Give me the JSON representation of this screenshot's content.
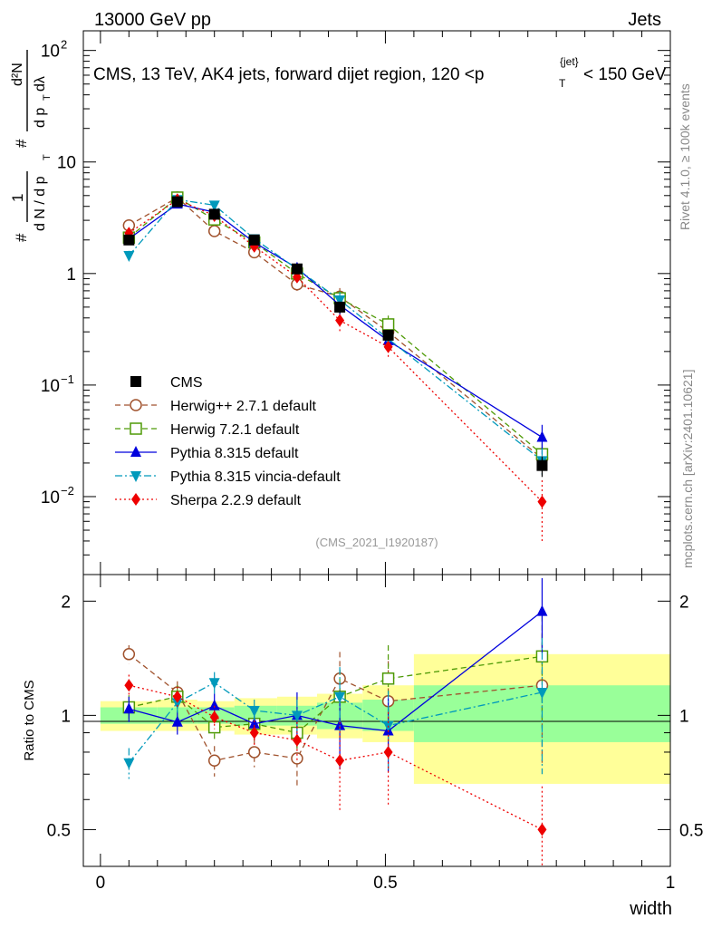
{
  "header": {
    "left": "13000 GeV pp",
    "right": "Jets"
  },
  "side_labels": {
    "rivet": "Rivet 4.1.0, ≥ 100k events",
    "mcplots": "mcplots.cern.ch [arXiv:2401.10621]"
  },
  "watermark": "(CMS_2021_I1920187)",
  "chart_data": [
    {
      "type": "line",
      "panel": "main",
      "title": "CMS, 13 TeV, AK4 jets, forward dijet region, 120 <p_T^{jet}< 150 GeV",
      "title_parts": {
        "pre": "CMS, 13 TeV, AK4 jets, forward dijet region, 120 <p",
        "sup": "{jet}",
        "sub": "T",
        "post": "< 150 GeV"
      },
      "ylabel": "1/N dN/dp_T dλ",
      "ylabel_parts": {
        "hash": "#",
        "one": "1",
        "dN": "d N / d p",
        "T": "T",
        "d2N": "d²N",
        "dpdl": "d p",
        "dl": " dλ"
      },
      "yscale": "log",
      "ylim": [
        0.002,
        150
      ],
      "xlim": [
        -0.03,
        1.0
      ],
      "yticks": [
        {
          "value": 100,
          "base": "10",
          "exp": "2"
        },
        {
          "value": 10,
          "base": "10",
          "exp": ""
        },
        {
          "value": 1,
          "base": "1",
          "exp": ""
        },
        {
          "value": 0.1,
          "base": "10",
          "exp": "−1"
        },
        {
          "value": 0.01,
          "base": "10",
          "exp": "−2"
        }
      ],
      "legend_position": "bottom-left",
      "x": [
        0.05,
        0.135,
        0.2,
        0.27,
        0.345,
        0.42,
        0.505,
        0.775
      ],
      "series": [
        {
          "name": "CMS",
          "color": "#000000",
          "style": "data",
          "marker": "square-filled",
          "values": [
            2.0,
            4.4,
            3.4,
            2.0,
            1.1,
            0.5,
            0.28,
            0.019
          ],
          "errors": [
            0.2,
            0.3,
            0.25,
            0.15,
            0.1,
            0.06,
            0.03,
            0.004
          ]
        },
        {
          "name": "Herwig++ 2.7.1 default",
          "color": "#a0522d",
          "style": "dashed",
          "marker": "circle-open",
          "values": [
            2.7,
            4.8,
            2.4,
            1.55,
            0.8,
            0.62,
            0.3,
            0.022
          ],
          "errors": [
            0.2,
            0.35,
            0.2,
            0.15,
            0.1,
            0.12,
            0.06,
            0.006
          ]
        },
        {
          "name": "Herwig 7.2.1 default",
          "color": "#4e9a06",
          "style": "dashed",
          "marker": "square-open",
          "values": [
            2.1,
            4.8,
            3.05,
            1.9,
            1.0,
            0.6,
            0.35,
            0.024
          ],
          "errors": [
            0.2,
            0.35,
            0.25,
            0.15,
            0.1,
            0.1,
            0.07,
            0.006
          ]
        },
        {
          "name": "Pythia 8.315 default",
          "color": "#0000dd",
          "style": "solid",
          "marker": "triangle-up",
          "values": [
            2.05,
            4.2,
            3.55,
            1.9,
            1.12,
            0.52,
            0.25,
            0.034
          ],
          "errors": [
            0.2,
            0.3,
            0.3,
            0.18,
            0.12,
            0.1,
            0.05,
            0.01
          ]
        },
        {
          "name": "Pythia 8.315 vincia-default",
          "color": "#0099bb",
          "style": "dashdot",
          "marker": "triangle-down",
          "values": [
            1.45,
            4.6,
            4.1,
            2.05,
            1.1,
            0.58,
            0.26,
            0.021
          ],
          "errors": [
            0.15,
            0.35,
            0.3,
            0.18,
            0.12,
            0.1,
            0.05,
            0.006
          ]
        },
        {
          "name": "Sherpa 2.2.9 default",
          "color": "#ee0000",
          "style": "dotted",
          "marker": "diamond",
          "values": [
            2.3,
            4.6,
            3.3,
            1.75,
            0.93,
            0.38,
            0.22,
            0.009
          ],
          "errors": [
            0.2,
            0.35,
            0.25,
            0.15,
            0.1,
            0.08,
            0.05,
            0.005
          ]
        }
      ]
    },
    {
      "type": "line",
      "panel": "ratio",
      "ylabel": "Ratio to CMS",
      "xlabel": "width",
      "ylim": [
        0.4,
        2.35
      ],
      "xlim": [
        -0.03,
        1.0
      ],
      "yticks": [
        "0.5",
        "1",
        "2"
      ],
      "xticks": [
        "0",
        "0.5",
        "1"
      ],
      "bands": [
        {
          "x0": 0.0,
          "x1": 0.1,
          "in1": 0.95,
          "in2": 1.05,
          "out1": 0.91,
          "out2": 1.09
        },
        {
          "x0": 0.1,
          "x1": 0.17,
          "in1": 0.95,
          "in2": 1.05,
          "out1": 0.91,
          "out2": 1.1
        },
        {
          "x0": 0.17,
          "x1": 0.235,
          "in1": 0.95,
          "in2": 1.05,
          "out1": 0.91,
          "out2": 1.09
        },
        {
          "x0": 0.235,
          "x1": 0.31,
          "in1": 0.94,
          "in2": 1.06,
          "out1": 0.89,
          "out2": 1.11
        },
        {
          "x0": 0.31,
          "x1": 0.38,
          "in1": 0.94,
          "in2": 1.06,
          "out1": 0.89,
          "out2": 1.12
        },
        {
          "x0": 0.38,
          "x1": 0.46,
          "in1": 0.92,
          "in2": 1.08,
          "out1": 0.87,
          "out2": 1.14
        },
        {
          "x0": 0.46,
          "x1": 0.55,
          "in1": 0.91,
          "in2": 1.1,
          "out1": 0.85,
          "out2": 1.2
        },
        {
          "x0": 0.55,
          "x1": 1.0,
          "in1": 0.85,
          "in2": 1.2,
          "out1": 0.66,
          "out2": 1.45
        }
      ],
      "x": [
        0.05,
        0.135,
        0.2,
        0.27,
        0.345,
        0.42,
        0.505,
        0.775
      ],
      "series": [
        {
          "name": "Herwig++ 2.7.1 default",
          "values": [
            1.45,
            1.15,
            0.76,
            0.8,
            0.77,
            1.25,
            1.09,
            1.2
          ],
          "errors": [
            0.08,
            0.08,
            0.07,
            0.07,
            0.12,
            0.22,
            0.3,
            0.45
          ]
        },
        {
          "name": "Herwig 7.2.1 default",
          "values": [
            1.05,
            1.12,
            0.93,
            0.95,
            0.9,
            1.12,
            1.25,
            1.43
          ],
          "errors": [
            0.08,
            0.08,
            0.07,
            0.06,
            0.08,
            0.2,
            0.28,
            0.5
          ]
        },
        {
          "name": "Pythia 8.315 default",
          "values": [
            1.04,
            0.96,
            1.06,
            0.95,
            1.0,
            0.94,
            0.91,
            1.88
          ],
          "errors": [
            0.08,
            0.07,
            0.08,
            0.08,
            0.15,
            0.22,
            0.2,
            0.42
          ]
        },
        {
          "name": "Pythia 8.315 vincia-default",
          "values": [
            0.75,
            1.08,
            1.22,
            1.03,
            1.0,
            1.12,
            0.94,
            1.15
          ],
          "errors": [
            0.07,
            0.08,
            0.08,
            0.07,
            0.1,
            0.22,
            0.22,
            0.45
          ]
        },
        {
          "name": "Sherpa 2.2.9 default",
          "values": [
            1.2,
            1.12,
            0.99,
            0.9,
            0.86,
            0.76,
            0.8,
            0.5
          ],
          "errors": [
            0.08,
            0.07,
            0.07,
            0.07,
            0.1,
            0.2,
            0.22,
            0.15
          ]
        }
      ]
    }
  ]
}
